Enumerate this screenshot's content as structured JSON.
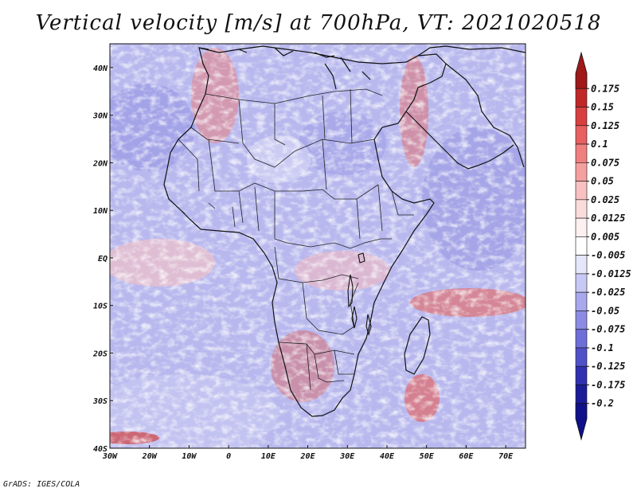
{
  "title": "Vertical velocity [m/s] at 700hPa, VT: 2021020518",
  "credit": "GrADS: IGES/COLA",
  "map": {
    "region": "Africa",
    "variable": "Vertical velocity",
    "units": "m/s",
    "level": "700hPa",
    "valid_time": "2021020518",
    "lon_range": [
      -30,
      75
    ],
    "lat_range": [
      -40,
      45
    ],
    "lon_ticks": [
      {
        "value": -30,
        "label": "30W"
      },
      {
        "value": -20,
        "label": "20W"
      },
      {
        "value": -10,
        "label": "10W"
      },
      {
        "value": 0,
        "label": "0"
      },
      {
        "value": 10,
        "label": "10E"
      },
      {
        "value": 20,
        "label": "20E"
      },
      {
        "value": 30,
        "label": "30E"
      },
      {
        "value": 40,
        "label": "40E"
      },
      {
        "value": 50,
        "label": "50E"
      },
      {
        "value": 60,
        "label": "60E"
      },
      {
        "value": 70,
        "label": "70E"
      }
    ],
    "lat_ticks": [
      {
        "value": 40,
        "label": "40N"
      },
      {
        "value": 30,
        "label": "30N"
      },
      {
        "value": 20,
        "label": "20N"
      },
      {
        "value": 10,
        "label": "10N"
      },
      {
        "value": 0,
        "label": "EQ"
      },
      {
        "value": -10,
        "label": "10S"
      },
      {
        "value": -20,
        "label": "20S"
      },
      {
        "value": -30,
        "label": "30S"
      },
      {
        "value": -40,
        "label": "40S"
      }
    ]
  },
  "colorbar": {
    "labels": [
      "0.175",
      "0.15",
      "0.125",
      "0.1",
      "0.075",
      "0.05",
      "0.025",
      "0.0125",
      "0.005",
      "-0.005",
      "-0.0125",
      "-0.025",
      "-0.05",
      "-0.075",
      "-0.1",
      "-0.125",
      "-0.175",
      "-0.2"
    ],
    "colors": [
      "#a01818",
      "#c02828",
      "#d84040",
      "#e86060",
      "#f08080",
      "#f4a0a0",
      "#f8c0c0",
      "#fadcdc",
      "#fdf0f0",
      "#ffffff",
      "#e6e6fb",
      "#c8c8f4",
      "#a8a8ec",
      "#8c8ce4",
      "#6e6ed8",
      "#5050c8",
      "#3030b0",
      "#1c1c98",
      "#10108a"
    ]
  }
}
